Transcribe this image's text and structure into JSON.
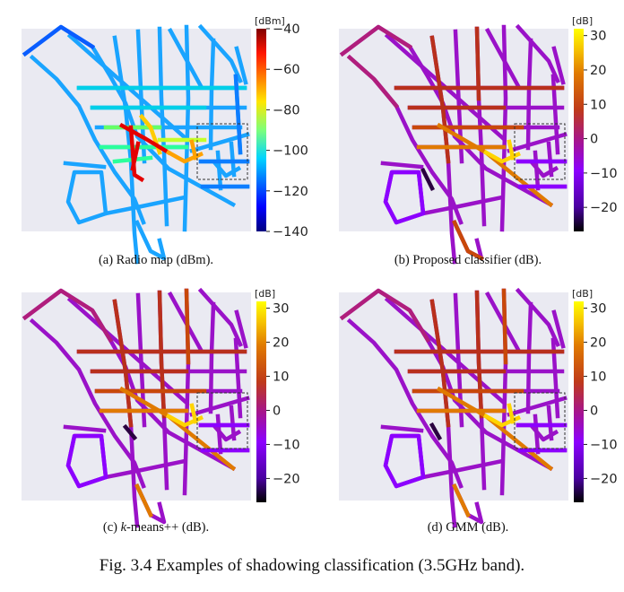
{
  "figure_caption": "Fig. 3.4 Examples of shadowing classification (3.5GHz band).",
  "chart_data": [
    {
      "type": "heatmap",
      "id": "a",
      "caption": "(a)  Radio map (dBm).",
      "colorbar_unit": "[dBm]",
      "colormap": "jet",
      "vmin": -140,
      "vmax": -40,
      "ticks": [
        -40,
        -60,
        -80,
        -100,
        -120,
        -140
      ],
      "tick_labels": [
        "−40",
        "−60",
        "−80",
        "−100",
        "−120",
        "−140"
      ],
      "highlight_box": true
    },
    {
      "type": "heatmap",
      "id": "b",
      "caption": "(b)  Proposed classifier (dB).",
      "colorbar_unit": "[dB]",
      "colormap": "gnuplot",
      "vmin": -27,
      "vmax": 32,
      "ticks": [
        30,
        20,
        10,
        0,
        -10,
        -20
      ],
      "tick_labels": [
        "30",
        "20",
        "10",
        "0",
        "−10",
        "−20"
      ],
      "highlight_box": true
    },
    {
      "type": "heatmap",
      "id": "c",
      "caption_prefix": "(c)  ",
      "caption_em": "k",
      "caption_rest": "-means++ (dB).",
      "colorbar_unit": "[dB]",
      "colormap": "gnuplot",
      "vmin": -27,
      "vmax": 32,
      "ticks": [
        30,
        20,
        10,
        0,
        -10,
        -20
      ],
      "tick_labels": [
        "30",
        "20",
        "10",
        "0",
        "−10",
        "−20"
      ],
      "highlight_box": true
    },
    {
      "type": "heatmap",
      "id": "d",
      "caption": "(d)  GMM (dB).",
      "colorbar_unit": "[dB]",
      "colormap": "gnuplot",
      "vmin": -27,
      "vmax": 32,
      "ticks": [
        30,
        20,
        10,
        0,
        -10,
        -20
      ],
      "tick_labels": [
        "30",
        "20",
        "10",
        "0",
        "−10",
        "−20"
      ],
      "highlight_box": true
    }
  ]
}
